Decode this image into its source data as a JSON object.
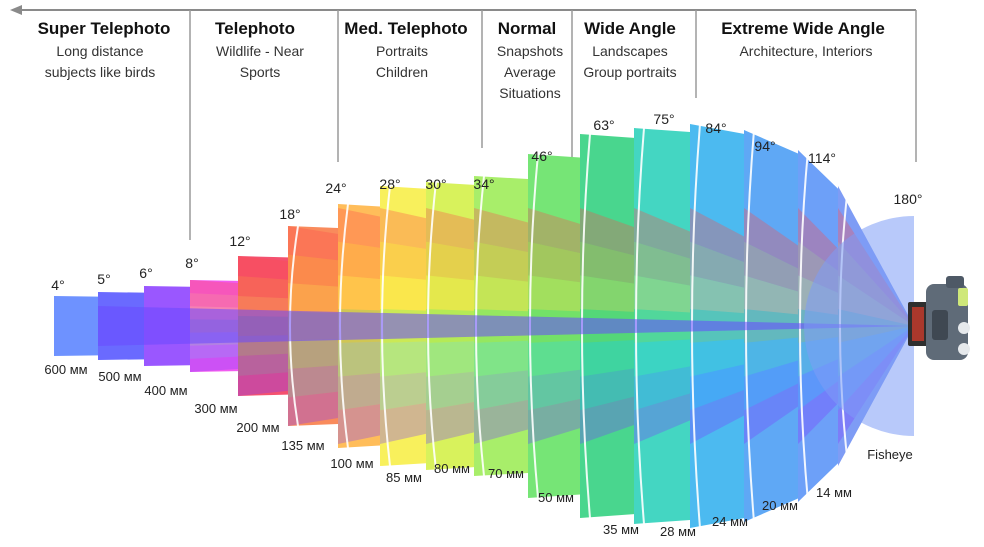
{
  "categories": [
    {
      "title": "Super Telephoto",
      "desc": [
        "Long distance",
        "subjects like birds"
      ]
    },
    {
      "title": "Telephoto",
      "desc": [
        "Wildlife - Near",
        "Sports"
      ]
    },
    {
      "title": "Med. Telephoto",
      "desc": [
        "Portraits",
        "Children"
      ]
    },
    {
      "title": "Normal",
      "desc": [
        "Snapshots",
        "Average",
        "Situations"
      ]
    },
    {
      "title": "Wide Angle",
      "desc": [
        "Landscapes",
        "Group portraits"
      ]
    },
    {
      "title": "Extreme Wide Angle",
      "desc": [
        "Architecture, Interiors"
      ]
    }
  ],
  "lenses": [
    {
      "angle": "4°",
      "focal": "600 мм",
      "color": "#6e92ff"
    },
    {
      "angle": "5°",
      "focal": "500 мм",
      "color": "#6a6aff"
    },
    {
      "angle": "6°",
      "focal": "400 мм",
      "color": "#9a57ff"
    },
    {
      "angle": "8°",
      "focal": "300 мм",
      "color": "#f25cf0"
    },
    {
      "angle": "12°",
      "focal": "200 мм",
      "color": "#f4516f"
    },
    {
      "angle": "18°",
      "focal": "135 мм",
      "color": "#f98b5c"
    },
    {
      "angle": "24°",
      "focal": "100 мм",
      "color": "#ffbd5a"
    },
    {
      "angle": "28°",
      "focal": "85 мм",
      "color": "#f8f05c"
    },
    {
      "angle": "30°",
      "focal": "80 мм",
      "color": "#d8f25c"
    },
    {
      "angle": "34°",
      "focal": "70 мм",
      "color": "#a8ee6a"
    },
    {
      "angle": "46°",
      "focal": "50 мм",
      "color": "#76e576"
    },
    {
      "angle": "63°",
      "focal": "35 мм",
      "color": "#49d68e"
    },
    {
      "angle": "75°",
      "focal": "28 мм",
      "color": "#44d6c2"
    },
    {
      "angle": "84°",
      "focal": "24 мм",
      "color": "#4cbaf0"
    },
    {
      "angle": "94°",
      "focal": "20 мм",
      "color": "#5fa8f5"
    },
    {
      "angle": "114°",
      "focal": "14 мм",
      "color": "#6da0f8"
    },
    {
      "angle": "180°",
      "focal": "Fisheye",
      "color": "#7e9cf5"
    }
  ],
  "band_colors": [
    "#ff4a4a",
    "#ff8a2a",
    "#ffd42a",
    "#6cd94a",
    "#2ad0c8",
    "#3a86ff",
    "#7b3cff"
  ],
  "camera_color": "#5f6b78"
}
